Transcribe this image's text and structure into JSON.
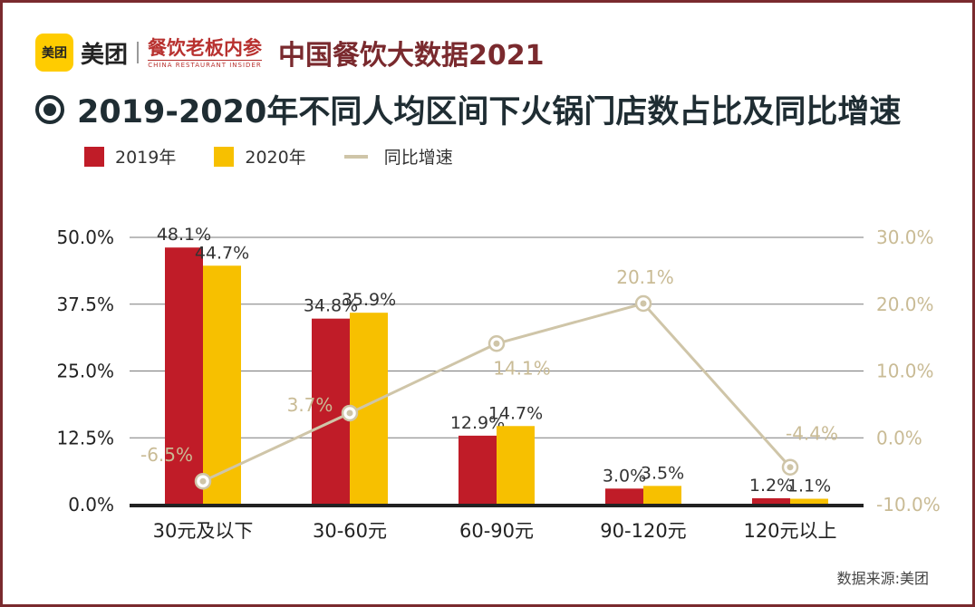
{
  "brand": {
    "meituan_icon_text": "美团",
    "meituan_name": "美团",
    "cri_name": "餐饮老板内参",
    "cri_subtitle": "CHINA RESTAURANT INSIDER",
    "report_title": "中国餐饮大数据2021"
  },
  "title": "2019-2020年不同人均区间下火锅门店数占比及同比增速",
  "legend": {
    "s2019": "2019年",
    "s2020": "2020年",
    "growth": "同比增速"
  },
  "source": "数据来源:美团",
  "colors": {
    "s2019": "#c01c28",
    "s2020": "#f7c000",
    "growth": "#cfc5a8",
    "growth_text": "#c9bb95",
    "axis": "#222222",
    "grid": "#7a7a7a"
  },
  "chart_data": {
    "type": "bar",
    "categories": [
      "30元及以下",
      "30-60元",
      "60-90元",
      "90-120元",
      "120元以上"
    ],
    "series": [
      {
        "name": "2019年",
        "values": [
          48.1,
          34.8,
          12.9,
          3.0,
          1.2
        ],
        "labels": [
          "48.1%",
          "34.8%",
          "12.9%",
          "3.0%",
          "1.2%"
        ]
      },
      {
        "name": "2020年",
        "values": [
          44.7,
          35.9,
          14.7,
          3.5,
          1.1
        ],
        "labels": [
          "44.7%",
          "35.9%",
          "14.7%",
          "3.5%",
          "1.1%"
        ]
      }
    ],
    "line_series": {
      "name": "同比增速",
      "type": "line",
      "axis": "right",
      "values": [
        -6.5,
        3.7,
        14.1,
        20.1,
        -4.4
      ],
      "labels": [
        "-6.5%",
        "3.7%",
        "14.1%",
        "20.1%",
        "-4.4%"
      ]
    },
    "left_axis": {
      "range": [
        0,
        50
      ],
      "ticks": [
        0,
        12.5,
        25,
        37.5,
        50
      ],
      "tick_labels": [
        "0.0%",
        "12.5%",
        "25.0%",
        "37.5%",
        "50.0%"
      ]
    },
    "right_axis": {
      "range": [
        -10,
        30
      ],
      "ticks": [
        -10,
        0,
        10,
        20,
        30
      ],
      "tick_labels": [
        "-10.0%",
        "0.0%",
        "10.0%",
        "20.0%",
        "30.0%"
      ]
    }
  }
}
